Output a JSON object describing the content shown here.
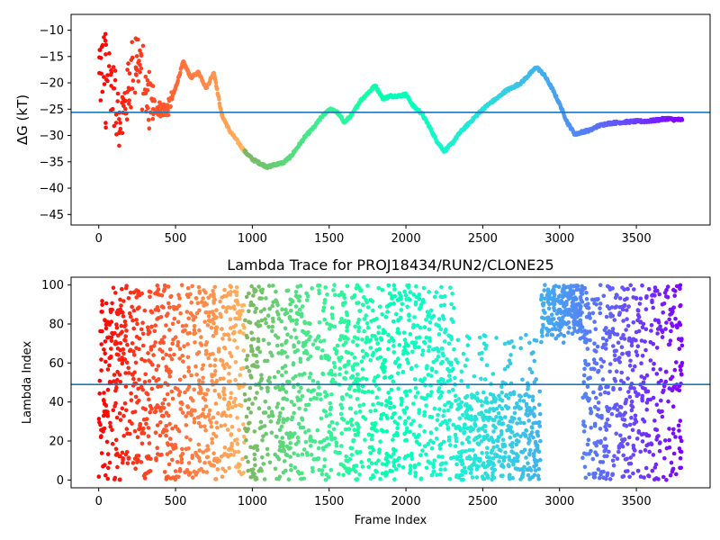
{
  "chart_data": [
    {
      "type": "scatter",
      "title": "",
      "xlabel": "",
      "ylabel": "ΔG (kT)",
      "xlim": [
        -180,
        3980
      ],
      "ylim": [
        -47,
        -7
      ],
      "xticks": [
        0,
        500,
        1000,
        1500,
        2000,
        2500,
        3000,
        3500
      ],
      "yticks": [
        -10,
        -15,
        -20,
        -25,
        -30,
        -35,
        -40,
        -45
      ],
      "hline": -25.6,
      "hline_color": "#1f77b4",
      "colormap": "rainbow (reversed: red at frame 0, violet at last frame)",
      "max_frame": 3800,
      "series": [
        {
          "x": [
            0,
            50,
            100,
            150,
            200,
            250,
            300,
            350,
            400,
            450,
            500,
            550,
            600,
            650,
            700,
            750,
            800,
            850,
            900,
            950,
            1000,
            1050,
            1100,
            1150,
            1200,
            1250,
            1300,
            1350,
            1400,
            1450,
            1500,
            1550,
            1600,
            1650,
            1700,
            1750,
            1800,
            1850,
            1900,
            1950,
            2000,
            2050,
            2100,
            2150,
            2200,
            2250,
            2300,
            2350,
            2400,
            2450,
            2500,
            2550,
            2600,
            2650,
            2700,
            2750,
            2800,
            2850,
            2900,
            2950,
            3000,
            3050,
            3100,
            3150,
            3200,
            3250,
            3300,
            3350,
            3400,
            3450,
            3500,
            3550,
            3600,
            3650,
            3700,
            3750,
            3800
          ],
          "y": [
            -20,
            -15,
            -23,
            -27,
            -20,
            -14,
            -22,
            -24,
            -25,
            -25,
            -21,
            -16,
            -19,
            -18,
            -21,
            -18,
            -26,
            -29,
            -31,
            -33,
            -34.5,
            -35.3,
            -36,
            -35.5,
            -35.2,
            -34,
            -32,
            -30,
            -28.5,
            -26.5,
            -25,
            -25.5,
            -27.5,
            -26,
            -23.5,
            -22,
            -20.5,
            -23,
            -22.5,
            -22.5,
            -22.2,
            -24.5,
            -25.7,
            -28.2,
            -31,
            -33,
            -31.5,
            -29.5,
            -28,
            -26.5,
            -25,
            -23.8,
            -22.8,
            -21.5,
            -20.8,
            -20,
            -18.5,
            -17,
            -18.5,
            -21,
            -24,
            -27.5,
            -29.8,
            -29.3,
            -29,
            -28.2,
            -27.8,
            -27.6,
            -27.5,
            -27.4,
            -27.3,
            -27.3,
            -27.2,
            -27,
            -26.8,
            -27,
            -27
          ]
        }
      ]
    },
    {
      "type": "scatter",
      "title": "Lambda Trace for PROJ18434/RUN2/CLONE25",
      "xlabel": "Frame Index",
      "ylabel": "Lambda Index",
      "xlim": [
        -180,
        3980
      ],
      "ylim": [
        -4,
        104
      ],
      "xticks": [
        0,
        500,
        1000,
        1500,
        2000,
        2500,
        3000,
        3500
      ],
      "yticks": [
        0,
        20,
        40,
        60,
        80,
        100
      ],
      "hline": 49,
      "hline_color": "#1f77b4",
      "colormap": "rainbow (reversed: red at frame 0, violet at last frame)",
      "max_frame": 3800,
      "point_count": 3800,
      "segments": [
        {
          "x_range": [
            0,
            60
          ],
          "y_range": [
            0,
            100
          ]
        },
        {
          "x_range": [
            60,
            780
          ],
          "y_range": [
            0,
            100
          ]
        },
        {
          "x_range": [
            780,
            1190
          ],
          "y_range": [
            0,
            100
          ]
        },
        {
          "x_range": [
            1190,
            1660
          ],
          "y_range": [
            0,
            100
          ]
        },
        {
          "x_range": [
            1660,
            2320
          ],
          "y_range": [
            0,
            100
          ]
        },
        {
          "x_range": [
            2320,
            2880
          ],
          "y_range": [
            0,
            75
          ]
        },
        {
          "x_range": [
            2880,
            3150
          ],
          "y_range": [
            60,
            100
          ]
        },
        {
          "x_range": [
            3150,
            3800
          ],
          "y_range": [
            0,
            100
          ]
        }
      ]
    }
  ]
}
